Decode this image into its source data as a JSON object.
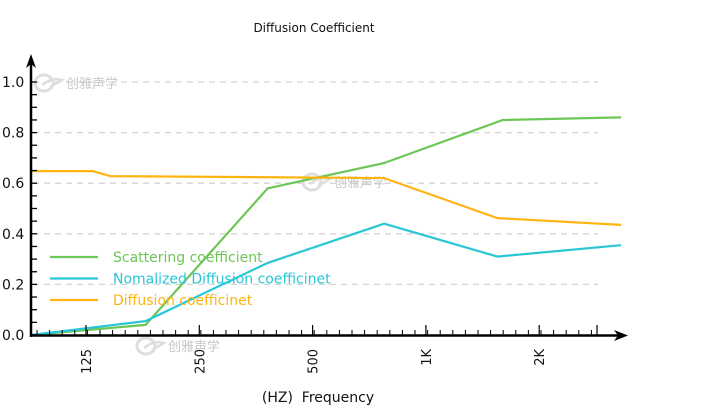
{
  "chart_data": {
    "type": "line",
    "title": "Diffusion Coefficient",
    "xlabel": "(HZ)  Frequency",
    "ylabel": "",
    "x_scale": "log2",
    "xlim_hz": [
      88,
      3300
    ],
    "ylim": [
      0.0,
      1.0
    ],
    "x_ticks": [
      {
        "hz": 125,
        "label": "125"
      },
      {
        "hz": 250,
        "label": "250"
      },
      {
        "hz": 500,
        "label": "500"
      },
      {
        "hz": 1000,
        "label": "1K"
      },
      {
        "hz": 2000,
        "label": "2K"
      }
    ],
    "y_ticks": [
      {
        "value": 0.0,
        "label": "0.0"
      },
      {
        "value": 0.2,
        "label": "0.2"
      },
      {
        "value": 0.4,
        "label": "0.4"
      },
      {
        "value": 0.6,
        "label": "0.6"
      },
      {
        "value": 0.8,
        "label": "0.8"
      },
      {
        "value": 1.0,
        "label": "1.0"
      }
    ],
    "grid": "horizontal-dashed",
    "legend_position": "lower-left",
    "series": [
      {
        "name": "Scattering coefficient",
        "color": "#6cc655",
        "points": [
          [
            88,
            0.0
          ],
          [
            180,
            0.04
          ],
          [
            380,
            0.58
          ],
          [
            775,
            0.68
          ],
          [
            1600,
            0.85
          ],
          [
            3300,
            0.86
          ]
        ]
      },
      {
        "name": "Nomalized Diffusion coefficinet",
        "color": "#29c6d6",
        "points": [
          [
            88,
            0.0
          ],
          [
            180,
            0.055
          ],
          [
            380,
            0.285
          ],
          [
            775,
            0.44
          ],
          [
            1550,
            0.31
          ],
          [
            3300,
            0.355
          ]
        ]
      },
      {
        "name": "Diffusion coefficinet",
        "color": "#ffb412",
        "points": [
          [
            88,
            0.648
          ],
          [
            130,
            0.648
          ],
          [
            145,
            0.628
          ],
          [
            775,
            0.62
          ],
          [
            1550,
            0.462
          ],
          [
            3300,
            0.435
          ]
        ]
      }
    ]
  },
  "watermark": "创雅声学"
}
